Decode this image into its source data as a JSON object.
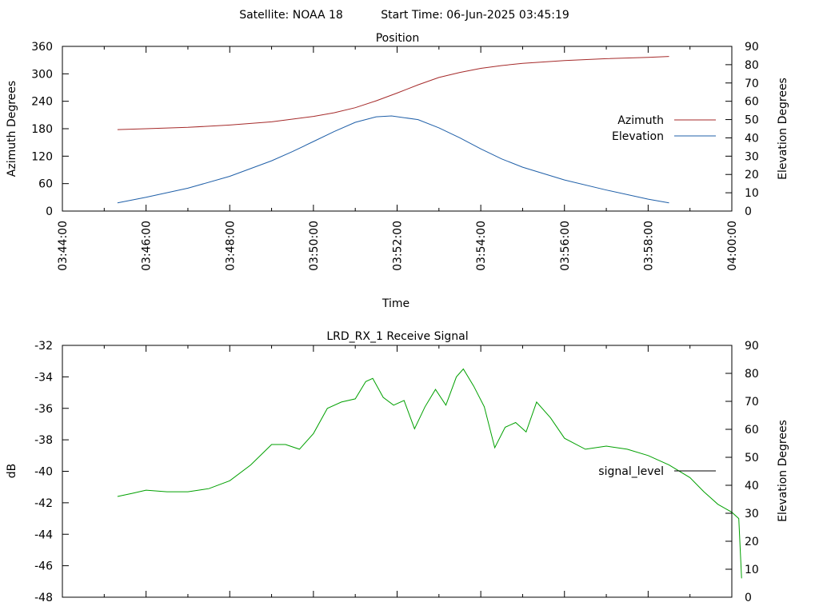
{
  "header": {
    "satellite": "Satellite: NOAA 18",
    "start_time": "Start Time: 06-Jun-2025 03:45:19"
  },
  "chart_data": [
    {
      "type": "line",
      "title": "Position",
      "xlabel": "Time",
      "ylabel": "Azimuth Degrees",
      "y2label": "Elevation Degrees",
      "x_ticks": [
        "03:44:00",
        "03:46:00",
        "03:48:00",
        "03:50:00",
        "03:52:00",
        "03:54:00",
        "03:56:00",
        "03:58:00",
        "04:00:00"
      ],
      "xlim": [
        "03:44:00",
        "04:00:00"
      ],
      "ylim": [
        0,
        360
      ],
      "y_ticks": [
        "0",
        "60",
        "120",
        "180",
        "240",
        "300",
        "360"
      ],
      "y2lim": [
        0,
        90
      ],
      "y2_ticks": [
        "0",
        "10",
        "20",
        "30",
        "40",
        "50",
        "60",
        "70",
        "80",
        "90"
      ],
      "grid": false,
      "legend_position": "right",
      "series": [
        {
          "name": "Azimuth",
          "axis": "left",
          "color": "#a52a2a",
          "points": [
            [
              "03:45:19",
              178
            ],
            [
              "03:46:00",
              180
            ],
            [
              "03:47:00",
              183
            ],
            [
              "03:48:00",
              188
            ],
            [
              "03:49:00",
              195
            ],
            [
              "03:49:30",
              201
            ],
            [
              "03:50:00",
              207
            ],
            [
              "03:50:30",
              215
            ],
            [
              "03:51:00",
              226
            ],
            [
              "03:51:30",
              241
            ],
            [
              "03:52:00",
              258
            ],
            [
              "03:52:30",
              276
            ],
            [
              "03:53:00",
              292
            ],
            [
              "03:53:30",
              303
            ],
            [
              "03:54:00",
              312
            ],
            [
              "03:54:30",
              318
            ],
            [
              "03:55:00",
              323
            ],
            [
              "03:56:00",
              329
            ],
            [
              "03:57:00",
              333
            ],
            [
              "03:58:00",
              336
            ],
            [
              "03:58:30",
              338
            ]
          ]
        },
        {
          "name": "Elevation",
          "axis": "right",
          "color": "#1f5fa8",
          "points": [
            [
              "03:45:19",
              4.5
            ],
            [
              "03:46:00",
              7.5
            ],
            [
              "03:47:00",
              12.5
            ],
            [
              "03:48:00",
              19
            ],
            [
              "03:49:00",
              27.5
            ],
            [
              "03:49:30",
              32.5
            ],
            [
              "03:50:00",
              38
            ],
            [
              "03:50:30",
              43.5
            ],
            [
              "03:51:00",
              48.5
            ],
            [
              "03:51:30",
              51.5
            ],
            [
              "03:51:52",
              52
            ],
            [
              "03:52:30",
              50
            ],
            [
              "03:53:00",
              45.5
            ],
            [
              "03:53:30",
              40
            ],
            [
              "03:54:00",
              34
            ],
            [
              "03:54:30",
              28.5
            ],
            [
              "03:55:00",
              24
            ],
            [
              "03:56:00",
              17
            ],
            [
              "03:57:00",
              11.5
            ],
            [
              "03:58:00",
              6.5
            ],
            [
              "03:58:30",
              4.5
            ]
          ]
        }
      ]
    },
    {
      "type": "line",
      "title": "LRD_RX_1 Receive Signal",
      "xlabel": "",
      "ylabel": "dB",
      "y2label": "Elevation Degrees",
      "xlim": [
        "03:44:00",
        "04:00:00"
      ],
      "ylim": [
        -48,
        -32
      ],
      "y_ticks": [
        "-32",
        "-34",
        "-36",
        "-38",
        "-40",
        "-42",
        "-44",
        "-46",
        "-48"
      ],
      "y2lim": [
        0,
        90
      ],
      "y2_ticks": [
        "0",
        "10",
        "20",
        "30",
        "40",
        "50",
        "60",
        "70",
        "80",
        "90"
      ],
      "grid": false,
      "legend_position": "right",
      "series": [
        {
          "name": "signal_level",
          "color": "#00a000",
          "points": [
            [
              "03:45:19",
              -41.6
            ],
            [
              "03:45:40",
              -41.4
            ],
            [
              "03:46:00",
              -41.2
            ],
            [
              "03:46:30",
              -41.3
            ],
            [
              "03:47:00",
              -41.3
            ],
            [
              "03:47:30",
              -41.1
            ],
            [
              "03:48:00",
              -40.6
            ],
            [
              "03:48:30",
              -39.6
            ],
            [
              "03:49:00",
              -38.3
            ],
            [
              "03:49:20",
              -38.3
            ],
            [
              "03:49:40",
              -38.6
            ],
            [
              "03:50:00",
              -37.6
            ],
            [
              "03:50:20",
              -36.0
            ],
            [
              "03:50:40",
              -35.6
            ],
            [
              "03:51:00",
              -35.4
            ],
            [
              "03:51:15",
              -34.3
            ],
            [
              "03:51:25",
              -34.1
            ],
            [
              "03:51:40",
              -35.3
            ],
            [
              "03:51:55",
              -35.8
            ],
            [
              "03:52:10",
              -35.5
            ],
            [
              "03:52:25",
              -37.3
            ],
            [
              "03:52:40",
              -35.9
            ],
            [
              "03:52:55",
              -34.8
            ],
            [
              "03:53:10",
              -35.8
            ],
            [
              "03:53:25",
              -34.0
            ],
            [
              "03:53:35",
              -33.5
            ],
            [
              "03:53:50",
              -34.6
            ],
            [
              "03:54:05",
              -35.9
            ],
            [
              "03:54:20",
              -38.5
            ],
            [
              "03:54:35",
              -37.2
            ],
            [
              "03:54:50",
              -36.9
            ],
            [
              "03:55:05",
              -37.5
            ],
            [
              "03:55:20",
              -35.6
            ],
            [
              "03:55:40",
              -36.6
            ],
            [
              "03:56:00",
              -37.9
            ],
            [
              "03:56:30",
              -38.6
            ],
            [
              "03:57:00",
              -38.4
            ],
            [
              "03:57:30",
              -38.6
            ],
            [
              "03:58:00",
              -39.0
            ],
            [
              "03:58:30",
              -39.6
            ],
            [
              "03:59:00",
              -40.4
            ],
            [
              "03:59:20",
              -41.3
            ],
            [
              "03:59:40",
              -42.1
            ],
            [
              "04:00:00",
              -42.6
            ],
            [
              "04:00:10",
              -43.0
            ],
            [
              "04:00:14",
              -46.8
            ]
          ]
        }
      ]
    }
  ]
}
